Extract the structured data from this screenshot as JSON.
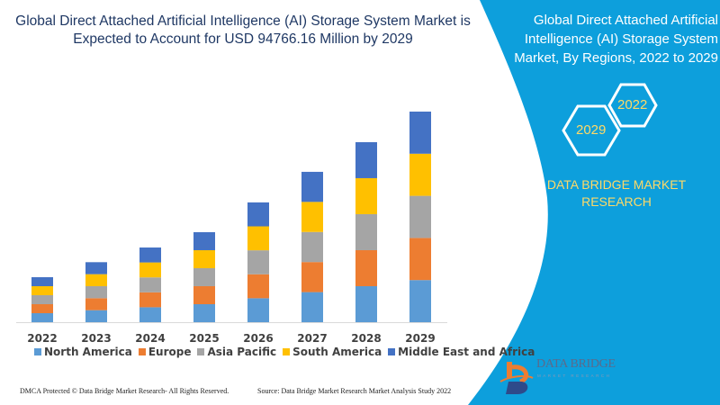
{
  "title": "Global Direct Attached Artificial Intelligence (AI) Storage System Market is Expected to Account for USD 94766.16 Million by 2029",
  "side_panel": {
    "title": "Global Direct Attached Artificial Intelligence (AI) Storage System Market, By Regions, 2022 to 2029",
    "hex_start": "2022",
    "hex_end": "2029",
    "brand": "DATA BRIDGE MARKET RESEARCH",
    "logo_text": "DATA BRIDGE",
    "logo_sub": "MARKET RESEARCH",
    "background_color": "#0d9fdc"
  },
  "footer": {
    "left": "DMCA Protected © Data Bridge Market Research- All Rights Reserved.",
    "right": "Source: Data Bridge Market Research Market Analysis Study 2022"
  },
  "chart_data": {
    "type": "bar",
    "stacked": true,
    "categories": [
      "2022",
      "2023",
      "2024",
      "2025",
      "2026",
      "2027",
      "2028",
      "2029"
    ],
    "series": [
      {
        "name": "North America",
        "color": "#5b9bd5",
        "values": [
          4050,
          5400,
          6720,
          8100,
          10780,
          13530,
          16200,
          18950
        ]
      },
      {
        "name": "Europe",
        "color": "#ed7d31",
        "values": [
          4050,
          5400,
          6720,
          8100,
          10780,
          13530,
          16200,
          18950
        ]
      },
      {
        "name": "Asia Pacific",
        "color": "#a5a5a5",
        "values": [
          4050,
          5400,
          6720,
          8100,
          10780,
          13530,
          16200,
          18950
        ]
      },
      {
        "name": "South America",
        "color": "#ffc000",
        "values": [
          4050,
          5400,
          6720,
          8100,
          10780,
          13530,
          16200,
          18950
        ]
      },
      {
        "name": "Middle East and Africa",
        "color": "#4472c4",
        "values": [
          4050,
          5400,
          6720,
          8100,
          10780,
          13530,
          16200,
          18950
        ]
      }
    ],
    "legend_position": "bottom",
    "grid": false,
    "y_axis_shown": false
  }
}
